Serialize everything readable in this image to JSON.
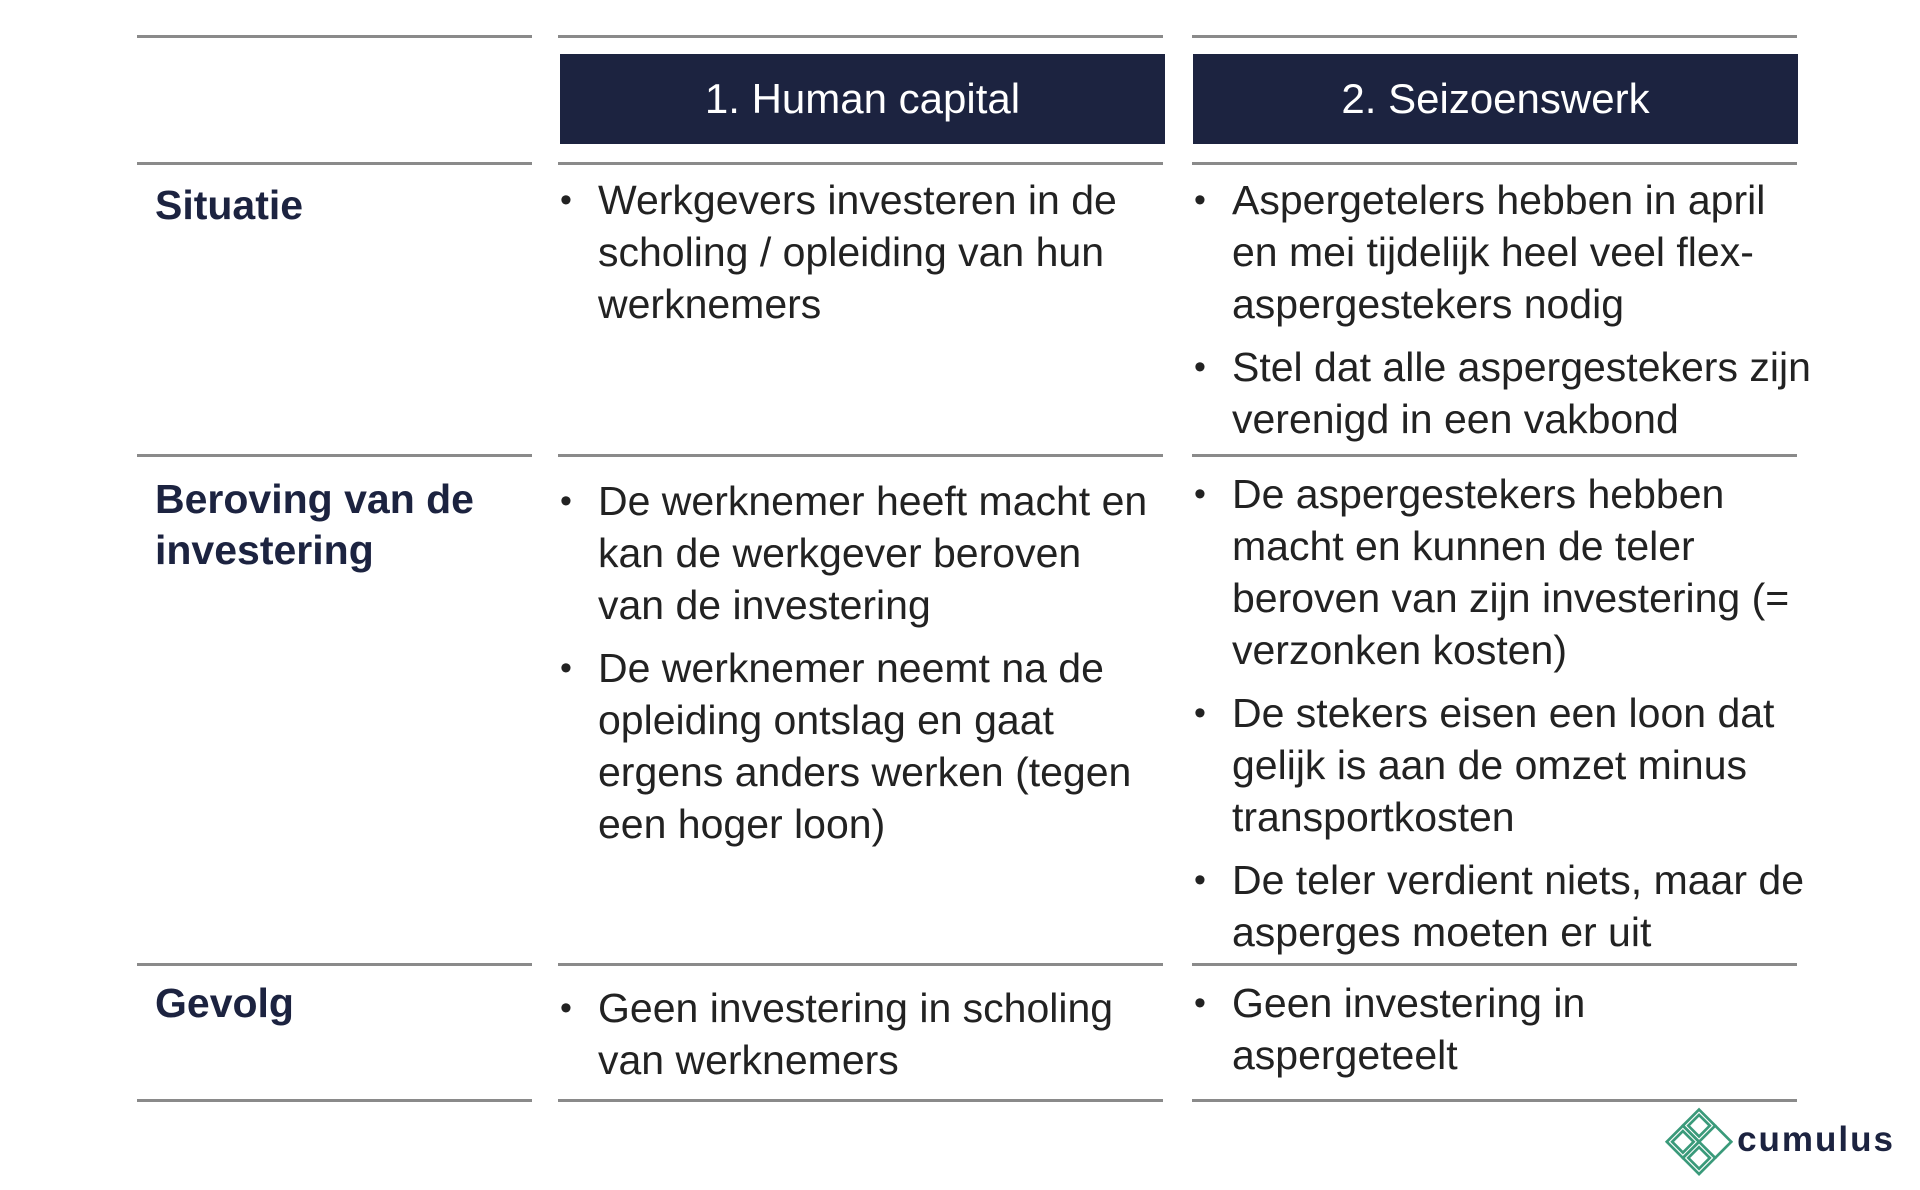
{
  "columns": {
    "col1": "1. Human capital",
    "col2": "2. Seizoenswerk"
  },
  "rows": {
    "situatie": {
      "label": "Situatie",
      "col1": [
        "Werkgevers investeren in de scholing / opleiding van hun werknemers"
      ],
      "col2": [
        "Aspergetelers hebben in april en mei tijdelijk heel veel flex-aspergestekers nodig",
        "Stel dat alle aspergestekers zijn verenigd in een vakbond"
      ]
    },
    "beroving": {
      "label": "Beroving van de investering",
      "col1": [
        "De werknemer heeft macht en kan de werkgever beroven van de investering",
        "De werknemer neemt na de opleiding ontslag en gaat ergens anders werken (tegen een hoger loon)"
      ],
      "col2": [
        "De aspergestekers hebben macht en kunnen de teler beroven van zijn investering (= verzonken kosten)",
        "De stekers eisen een loon dat gelijk is aan de omzet minus transportkosten",
        "De teler verdient niets, maar de asperges moeten er uit"
      ]
    },
    "gevolg": {
      "label": "Gevolg",
      "col1": [
        "Geen investering in scholing van werknemers"
      ],
      "col2": [
        "Geen investering in aspergeteelt"
      ]
    }
  },
  "bullet_char": "•",
  "logo": {
    "text": "cumulus",
    "icon": "cumulus-logo-icon",
    "color": "#3a9a7a"
  },
  "colors": {
    "header_bg": "#1c2340",
    "label_text": "#1c2340",
    "rule": "#8a8a8a"
  }
}
